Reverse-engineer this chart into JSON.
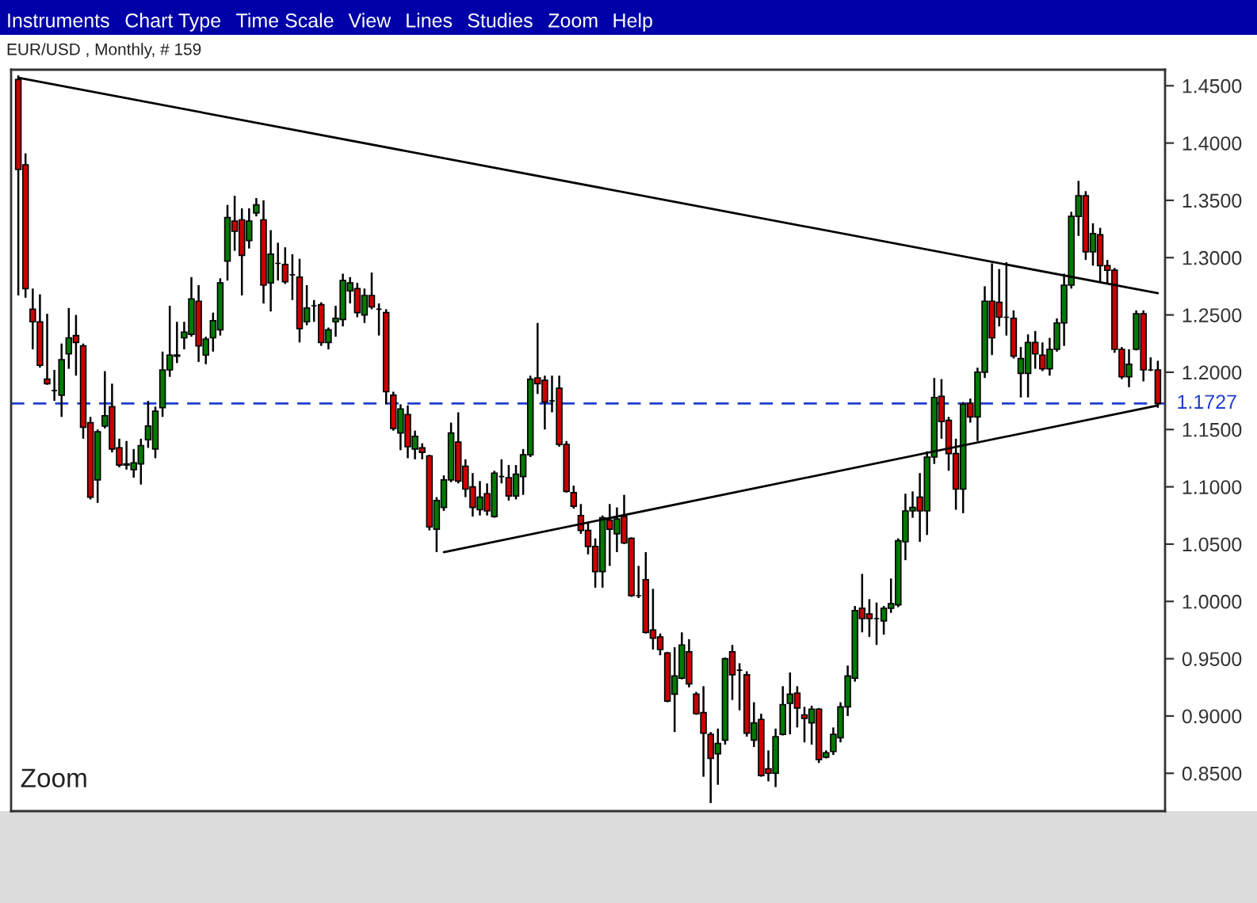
{
  "chart_data": {
    "type": "candlestick",
    "title": "EUR/USD , Monthly, # 159",
    "categories": [
      null,
      null,
      null,
      null,
      null,
      null,
      null,
      null,
      null,
      null,
      null,
      null,
      null,
      null,
      null,
      null,
      null,
      null,
      null,
      null,
      null,
      null,
      null,
      null,
      null,
      null,
      null,
      null,
      null,
      null,
      null,
      null,
      null,
      null,
      null,
      null,
      null,
      null,
      null,
      null,
      null,
      null,
      null,
      null,
      null,
      null,
      null,
      null,
      null,
      null,
      null,
      null,
      null,
      null,
      null,
      null,
      null,
      null,
      null,
      null,
      null,
      null,
      null,
      null,
      null,
      null,
      null,
      null,
      null,
      null,
      null,
      null,
      null,
      null,
      null,
      null,
      null,
      null,
      null,
      null,
      null,
      null,
      null,
      null,
      null,
      null,
      null,
      null,
      null,
      null,
      null,
      null,
      null,
      null,
      null,
      null,
      null,
      null,
      null,
      null,
      null,
      null,
      null,
      null,
      null,
      null,
      null,
      null,
      null,
      null,
      null,
      null,
      null,
      null,
      null,
      null,
      null,
      null,
      null,
      null,
      null,
      null,
      null,
      null,
      null,
      null,
      null,
      null,
      null,
      null,
      null,
      null,
      null,
      null,
      null,
      null,
      null,
      null,
      null,
      null,
      null,
      null,
      null,
      null,
      null,
      null,
      null,
      null,
      null,
      null,
      null,
      null,
      null,
      null,
      null,
      null,
      null,
      null,
      null
    ],
    "ohlc": [
      [
        1.4555,
        1.459,
        1.267,
        1.377
      ],
      [
        1.381,
        1.391,
        1.265,
        1.273
      ],
      [
        1.255,
        1.273,
        1.22,
        1.244
      ],
      [
        1.244,
        1.268,
        1.204,
        1.206
      ],
      [
        1.194,
        1.251,
        1.189,
        1.19
      ],
      [
        1.184,
        1.202,
        1.175,
        1.184
      ],
      [
        1.18,
        1.225,
        1.161,
        1.211
      ],
      [
        1.216,
        1.256,
        1.203,
        1.23
      ],
      [
        1.232,
        1.25,
        1.197,
        1.226
      ],
      [
        1.223,
        1.225,
        1.142,
        1.152
      ],
      [
        1.156,
        1.161,
        1.089,
        1.091
      ],
      [
        1.106,
        1.15,
        1.086,
        1.148
      ],
      [
        1.153,
        1.201,
        1.151,
        1.162
      ],
      [
        1.17,
        1.19,
        1.13,
        1.133
      ],
      [
        1.134,
        1.142,
        1.117,
        1.119
      ],
      [
        1.12,
        1.14,
        1.115,
        1.119
      ],
      [
        1.115,
        1.133,
        1.108,
        1.121
      ],
      [
        1.12,
        1.142,
        1.102,
        1.136
      ],
      [
        1.141,
        1.175,
        1.134,
        1.153
      ],
      [
        1.133,
        1.17,
        1.125,
        1.166
      ],
      [
        1.169,
        1.218,
        1.161,
        1.202
      ],
      [
        1.202,
        1.258,
        1.196,
        1.215
      ],
      [
        1.215,
        1.244,
        1.208,
        1.214
      ],
      [
        1.23,
        1.244,
        1.22,
        1.235
      ],
      [
        1.233,
        1.283,
        1.231,
        1.264
      ],
      [
        1.262,
        1.276,
        1.209,
        1.223
      ],
      [
        1.215,
        1.231,
        1.207,
        1.229
      ],
      [
        1.23,
        1.252,
        1.218,
        1.245
      ],
      [
        1.237,
        1.282,
        1.232,
        1.278
      ],
      [
        1.297,
        1.346,
        1.28,
        1.335
      ],
      [
        1.332,
        1.354,
        1.306,
        1.323
      ],
      [
        1.333,
        1.343,
        1.267,
        1.302
      ],
      [
        1.315,
        1.343,
        1.308,
        1.332
      ],
      [
        1.339,
        1.352,
        1.336,
        1.346
      ],
      [
        1.333,
        1.35,
        1.26,
        1.276
      ],
      [
        1.278,
        1.324,
        1.253,
        1.303
      ],
      [
        1.295,
        1.313,
        1.28,
        1.295
      ],
      [
        1.294,
        1.309,
        1.277,
        1.279
      ],
      [
        1.285,
        1.303,
        1.263,
        1.285
      ],
      [
        1.283,
        1.299,
        1.226,
        1.238
      ],
      [
        1.244,
        1.276,
        1.241,
        1.256
      ],
      [
        1.258,
        1.263,
        1.244,
        1.258
      ],
      [
        1.259,
        1.261,
        1.223,
        1.226
      ],
      [
        1.226,
        1.239,
        1.22,
        1.237
      ],
      [
        1.244,
        1.258,
        1.231,
        1.247
      ],
      [
        1.246,
        1.286,
        1.24,
        1.28
      ],
      [
        1.271,
        1.283,
        1.26,
        1.278
      ],
      [
        1.273,
        1.278,
        1.248,
        1.252
      ],
      [
        1.25,
        1.273,
        1.243,
        1.267
      ],
      [
        1.267,
        1.287,
        1.255,
        1.257
      ],
      [
        1.255,
        1.26,
        1.232,
        1.255
      ],
      [
        1.252,
        1.255,
        1.172,
        1.183
      ],
      [
        1.18,
        1.183,
        1.149,
        1.151
      ],
      [
        1.147,
        1.172,
        1.132,
        1.168
      ],
      [
        1.163,
        1.171,
        1.125,
        1.135
      ],
      [
        1.133,
        1.149,
        1.124,
        1.144
      ],
      [
        1.134,
        1.138,
        1.124,
        1.13
      ],
      [
        1.127,
        1.128,
        1.062,
        1.065
      ],
      [
        1.063,
        1.091,
        1.043,
        1.088
      ],
      [
        1.082,
        1.11,
        1.079,
        1.106
      ],
      [
        1.106,
        1.156,
        1.104,
        1.147
      ],
      [
        1.139,
        1.165,
        1.103,
        1.105
      ],
      [
        1.118,
        1.124,
        1.091,
        1.098
      ],
      [
        1.1,
        1.112,
        1.074,
        1.082
      ],
      [
        1.08,
        1.105,
        1.075,
        1.091
      ],
      [
        1.094,
        1.103,
        1.075,
        1.079
      ],
      [
        1.074,
        1.114,
        1.073,
        1.112
      ],
      [
        1.109,
        1.124,
        1.103,
        1.109
      ],
      [
        1.108,
        1.119,
        1.088,
        1.092
      ],
      [
        1.092,
        1.119,
        1.089,
        1.111
      ],
      [
        1.109,
        1.133,
        1.093,
        1.128
      ],
      [
        1.128,
        1.197,
        1.126,
        1.194
      ],
      [
        1.195,
        1.243,
        1.181,
        1.19
      ],
      [
        1.193,
        1.197,
        1.15,
        1.174
      ],
      [
        1.175,
        1.197,
        1.165,
        1.175
      ],
      [
        1.186,
        1.197,
        1.135,
        1.137
      ],
      [
        1.137,
        1.14,
        1.095,
        1.096
      ],
      [
        1.095,
        1.101,
        1.081,
        1.083
      ],
      [
        1.075,
        1.085,
        1.059,
        1.062
      ],
      [
        1.062,
        1.068,
        1.041,
        1.048
      ],
      [
        1.048,
        1.055,
        1.012,
        1.026
      ],
      [
        1.026,
        1.075,
        1.012,
        1.073
      ],
      [
        1.071,
        1.085,
        1.031,
        1.063
      ],
      [
        1.059,
        1.082,
        1.043,
        1.072
      ],
      [
        1.074,
        1.093,
        1.05,
        1.051
      ],
      [
        1.055,
        1.056,
        1.004,
        1.005
      ],
      [
        1.005,
        1.031,
        1.003,
        1.005
      ],
      [
        1.019,
        1.043,
        0.972,
        0.973
      ],
      [
        0.975,
        1.011,
        0.958,
        0.968
      ],
      [
        0.969,
        0.972,
        0.953,
        0.958
      ],
      [
        0.955,
        0.956,
        0.912,
        0.913
      ],
      [
        0.919,
        0.96,
        0.886,
        0.935
      ],
      [
        0.933,
        0.973,
        0.932,
        0.962
      ],
      [
        0.956,
        0.967,
        0.925,
        0.928
      ],
      [
        0.919,
        0.921,
        0.901,
        0.902
      ],
      [
        0.903,
        0.926,
        0.847,
        0.885
      ],
      [
        0.884,
        0.886,
        0.824,
        0.863
      ],
      [
        0.867,
        0.889,
        0.84,
        0.876
      ],
      [
        0.879,
        0.951,
        0.875,
        0.95
      ],
      [
        0.956,
        0.962,
        0.914,
        0.936
      ],
      [
        0.94,
        0.946,
        0.905,
        0.94
      ],
      [
        0.936,
        0.939,
        0.882,
        0.885
      ],
      [
        0.879,
        0.912,
        0.873,
        0.894
      ],
      [
        0.897,
        0.902,
        0.847,
        0.848
      ],
      [
        0.854,
        0.87,
        0.843,
        0.85
      ],
      [
        0.85,
        0.889,
        0.838,
        0.882
      ],
      [
        0.884,
        0.926,
        0.883,
        0.91
      ],
      [
        0.911,
        0.938,
        0.884,
        0.919
      ],
      [
        0.92,
        0.926,
        0.89,
        0.907
      ],
      [
        0.901,
        0.908,
        0.877,
        0.898
      ],
      [
        0.894,
        0.909,
        0.875,
        0.906
      ],
      [
        0.906,
        0.907,
        0.859,
        0.862
      ],
      [
        0.864,
        0.87,
        0.863,
        0.868
      ],
      [
        0.869,
        0.89,
        0.866,
        0.884
      ],
      [
        0.881,
        0.912,
        0.877,
        0.908
      ],
      [
        0.908,
        0.944,
        0.9,
        0.935
      ],
      [
        0.933,
        0.996,
        0.93,
        0.992
      ],
      [
        0.994,
        1.024,
        0.973,
        0.985
      ],
      [
        0.989,
        1.002,
        0.969,
        0.985
      ],
      [
        0.985,
        0.999,
        0.962,
        0.985
      ],
      [
        0.983,
        0.996,
        0.971,
        0.994
      ],
      [
        0.994,
        1.02,
        0.99,
        0.998
      ],
      [
        0.997,
        1.055,
        0.995,
        1.053
      ],
      [
        1.052,
        1.094,
        1.036,
        1.079
      ],
      [
        1.079,
        1.096,
        1.073,
        1.082
      ],
      [
        1.091,
        1.112,
        1.052,
        1.079
      ],
      [
        1.079,
        1.131,
        1.058,
        1.126
      ],
      [
        1.126,
        1.195,
        1.12,
        1.178
      ],
      [
        1.179,
        1.194,
        1.142,
        1.157
      ],
      [
        1.158,
        1.161,
        1.114,
        1.129
      ],
      [
        1.129,
        1.142,
        1.08,
        1.098
      ],
      [
        1.098,
        1.174,
        1.077,
        1.172
      ],
      [
        1.173,
        1.177,
        1.156,
        1.161
      ],
      [
        1.161,
        1.204,
        1.14,
        1.2
      ],
      [
        1.2,
        1.275,
        1.195,
        1.262
      ],
      [
        1.262,
        1.295,
        1.215,
        1.23
      ],
      [
        1.261,
        1.29,
        1.24,
        1.248
      ],
      [
        1.248,
        1.296,
        1.232,
        1.248
      ],
      [
        1.247,
        1.254,
        1.212,
        1.214
      ],
      [
        1.199,
        1.222,
        1.178,
        1.212
      ],
      [
        1.199,
        1.233,
        1.178,
        1.226
      ],
      [
        1.226,
        1.236,
        1.203,
        1.216
      ],
      [
        1.215,
        1.226,
        1.201,
        1.203
      ],
      [
        1.203,
        1.23,
        1.197,
        1.22
      ],
      [
        1.22,
        1.247,
        1.218,
        1.243
      ],
      [
        1.243,
        1.286,
        1.223,
        1.276
      ],
      [
        1.276,
        1.34,
        1.273,
        1.336
      ],
      [
        1.336,
        1.367,
        1.319,
        1.354
      ],
      [
        1.354,
        1.358,
        1.298,
        1.305
      ],
      [
        1.305,
        1.33,
        1.293,
        1.321
      ],
      [
        1.32,
        1.326,
        1.279,
        1.293
      ],
      [
        1.293,
        1.298,
        1.277,
        1.289
      ],
      [
        1.289,
        1.291,
        1.217,
        1.22
      ],
      [
        1.22,
        1.222,
        1.194,
        1.196
      ],
      [
        1.196,
        1.22,
        1.187,
        1.207
      ],
      [
        1.22,
        1.254,
        1.219,
        1.251
      ],
      [
        1.251,
        1.254,
        1.192,
        1.202
      ],
      [
        1.202,
        1.213,
        1.201,
        1.202
      ],
      [
        1.202,
        1.21,
        1.169,
        1.1727
      ]
    ],
    "series": [
      {
        "type": "line",
        "color": "#000000",
        "values": [
          1.457,
          null,
          null,
          null,
          null,
          null,
          null,
          null,
          null,
          null,
          null,
          null,
          null,
          null,
          null,
          null,
          null,
          null,
          null,
          null,
          null,
          null,
          null,
          null,
          null,
          null,
          null,
          null,
          null,
          null,
          null,
          null,
          null,
          null,
          null,
          null,
          null,
          null,
          null,
          null,
          null,
          null,
          null,
          null,
          null,
          null,
          null,
          null,
          null,
          null,
          null,
          null,
          null,
          null,
          null,
          null,
          null,
          null,
          null,
          null,
          null,
          null,
          null,
          null,
          null,
          null,
          null,
          null,
          null,
          null,
          null,
          null,
          null,
          null,
          null,
          null,
          null,
          null,
          null,
          null,
          null,
          null,
          null,
          null,
          null,
          null,
          null,
          null,
          null,
          null,
          null,
          null,
          null,
          null,
          null,
          null,
          null,
          null,
          null,
          null,
          null,
          null,
          null,
          null,
          null,
          null,
          null,
          null,
          null,
          null,
          null,
          null,
          null,
          null,
          null,
          null,
          null,
          null,
          null,
          null,
          null,
          null,
          null,
          null,
          null,
          null,
          null,
          null,
          null,
          null,
          null,
          null,
          null,
          null,
          null,
          null,
          null,
          null,
          null,
          null,
          null,
          null,
          null,
          null,
          null,
          null,
          null,
          null,
          null,
          null,
          null,
          null,
          null,
          null,
          null,
          null,
          null,
          null,
          1.269
        ]
      },
      {
        "type": "line",
        "color": "#000000",
        "values": [
          null,
          null,
          null,
          null,
          null,
          null,
          null,
          null,
          null,
          null,
          null,
          null,
          null,
          null,
          null,
          null,
          null,
          null,
          null,
          null,
          null,
          null,
          null,
          null,
          null,
          null,
          null,
          null,
          null,
          null,
          null,
          null,
          null,
          null,
          null,
          null,
          null,
          null,
          null,
          null,
          null,
          null,
          null,
          null,
          null,
          null,
          null,
          null,
          null,
          null,
          null,
          null,
          null,
          null,
          null,
          null,
          null,
          null,
          null,
          1.043,
          null,
          null,
          null,
          null,
          null,
          null,
          null,
          null,
          null,
          null,
          null,
          null,
          null,
          null,
          null,
          null,
          null,
          null,
          null,
          null,
          null,
          null,
          null,
          null,
          null,
          null,
          null,
          null,
          null,
          null,
          null,
          null,
          null,
          null,
          null,
          null,
          null,
          null,
          null,
          null,
          null,
          null,
          null,
          null,
          null,
          null,
          null,
          null,
          null,
          null,
          null,
          null,
          null,
          null,
          null,
          null,
          null,
          null,
          null,
          null,
          null,
          null,
          null,
          null,
          null,
          null,
          null,
          null,
          null,
          null,
          null,
          null,
          null,
          null,
          null,
          null,
          null,
          null,
          null,
          null,
          null,
          null,
          null,
          null,
          null,
          null,
          null,
          null,
          null,
          null,
          null,
          null,
          null,
          null,
          null,
          null,
          null,
          null,
          1.171
        ]
      }
    ],
    "ref_lines": [
      {
        "axis": "y",
        "value": 1.1727,
        "label": "1.1727",
        "color": "#1f3fcf",
        "line_style": "dashed"
      }
    ],
    "ylim": [
      0.817,
      1.464
    ],
    "yticks": [
      {
        "value": 0.85,
        "label": "0.8500"
      },
      {
        "value": 0.9,
        "label": "0.9000"
      },
      {
        "value": 0.95,
        "label": "0.9500"
      },
      {
        "value": 1.0,
        "label": "1.0000"
      },
      {
        "value": 1.05,
        "label": "1.0500"
      },
      {
        "value": 1.1,
        "label": "1.1000"
      },
      {
        "value": 1.15,
        "label": "1.1500"
      },
      {
        "value": 1.2,
        "label": "1.2000"
      },
      {
        "value": 1.25,
        "label": "1.2500"
      },
      {
        "value": 1.3,
        "label": "1.3000"
      },
      {
        "value": 1.35,
        "label": "1.3500"
      },
      {
        "value": 1.4,
        "label": "1.4000"
      },
      {
        "value": 1.45,
        "label": "1.4500"
      }
    ],
    "tick_labels": "y",
    "grid": false,
    "legend": false,
    "annotations": [
      "Instruments",
      "Chart Type",
      "Time Scale",
      "View",
      "Lines",
      "Studies",
      "Zoom",
      "Help",
      "Zoom"
    ]
  }
}
